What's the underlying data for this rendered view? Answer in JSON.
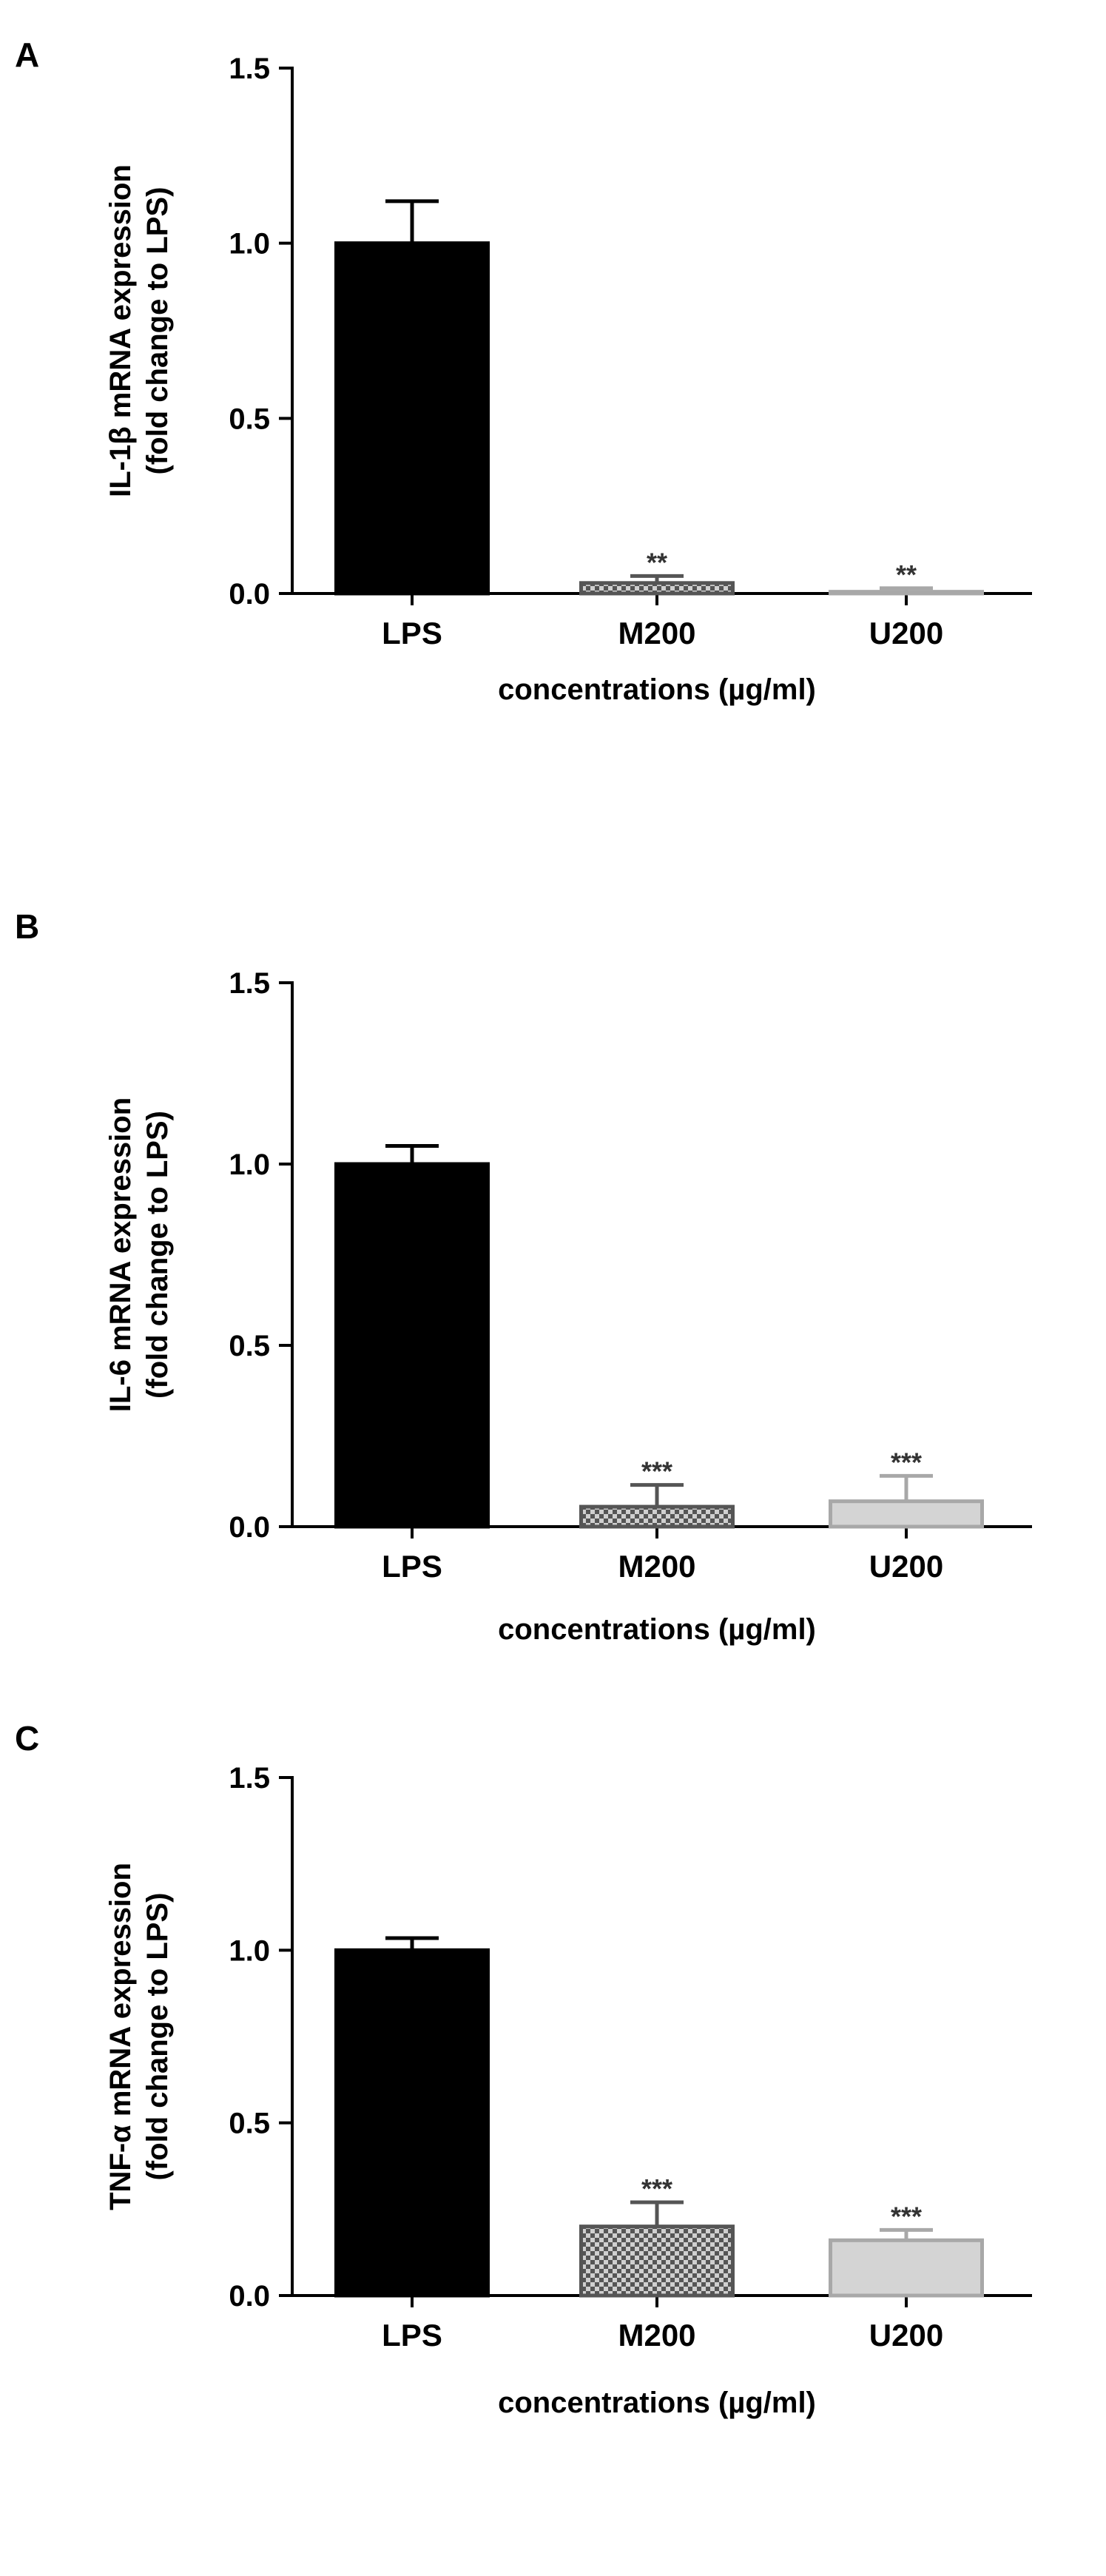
{
  "chart_data": [
    {
      "type": "bar",
      "panel_label": "A",
      "categories": [
        "LPS",
        "M200",
        "U200"
      ],
      "values": [
        1.0,
        0.03,
        0.005
      ],
      "errors": [
        0.12,
        0.02,
        0.01
      ],
      "significance": [
        "",
        "**",
        "**"
      ],
      "bar_fills": [
        "solid-black",
        "checker-dark",
        "solid-light-gray"
      ],
      "ylabel_line1": "IL-1β mRNA expression",
      "ylabel_line2": "(fold change to LPS)",
      "xlabel": "concentrations (µg/ml)",
      "ylim": [
        0,
        1.5
      ],
      "yticks": [
        "0.0",
        "0.5",
        "1.0",
        "1.5"
      ],
      "grid": false
    },
    {
      "type": "bar",
      "panel_label": "B",
      "categories": [
        "LPS",
        "M200",
        "U200"
      ],
      "values": [
        1.0,
        0.055,
        0.07
      ],
      "errors": [
        0.05,
        0.06,
        0.07
      ],
      "significance": [
        "",
        "***",
        "***"
      ],
      "bar_fills": [
        "solid-black",
        "checker-dark",
        "solid-light-gray"
      ],
      "ylabel_line1": "IL-6 mRNA expression",
      "ylabel_line2": "(fold change to LPS)",
      "xlabel": "concentrations (µg/ml)",
      "ylim": [
        0,
        1.5
      ],
      "yticks": [
        "0.0",
        "0.5",
        "1.0",
        "1.5"
      ],
      "grid": false
    },
    {
      "type": "bar",
      "panel_label": "C",
      "categories": [
        "LPS",
        "M200",
        "U200"
      ],
      "values": [
        1.0,
        0.2,
        0.16
      ],
      "errors": [
        0.035,
        0.07,
        0.03
      ],
      "significance": [
        "",
        "***",
        "***"
      ],
      "bar_fills": [
        "solid-black",
        "checker-dark",
        "solid-light-gray"
      ],
      "ylabel_line1": "TNF-α mRNA expression",
      "ylabel_line2": "(fold change to LPS)",
      "xlabel": "concentrations (µg/ml)",
      "ylim": [
        0,
        1.5
      ],
      "yticks": [
        "0.0",
        "0.5",
        "1.0",
        "1.5"
      ],
      "grid": false
    }
  ],
  "colors": {
    "solid-black": "#000000",
    "checker-dark": "#555555",
    "checker-light": "#cfcfcf",
    "solid-light-gray": "#d4d4d4",
    "light-gray-stroke": "#a8a8a8",
    "axis": "#000000"
  }
}
